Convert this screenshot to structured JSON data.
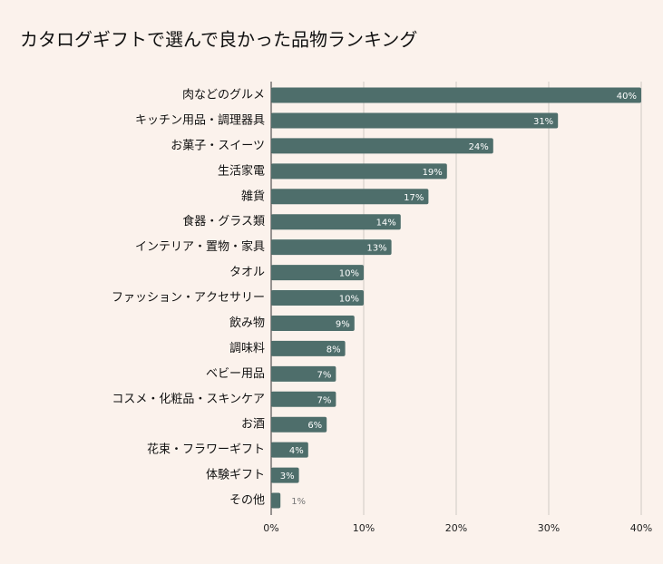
{
  "chart_data": {
    "type": "bar",
    "orientation": "horizontal",
    "title": "カタログギフトで選んで良かった品物ランキング",
    "categories": [
      "肉などのグルメ",
      "キッチン用品・調理器具",
      "お菓子・スイーツ",
      "生活家電",
      "雑貨",
      "食器・グラス類",
      "インテリア・置物・家具",
      "タオル",
      "ファッション・アクセサリー",
      "飲み物",
      "調味料",
      "ベビー用品",
      "コスメ・化粧品・スキンケア",
      "お酒",
      "花束・フラワーギフト",
      "体験ギフト",
      "その他"
    ],
    "values": [
      40,
      31,
      24,
      19,
      17,
      14,
      13,
      10,
      10,
      9,
      8,
      7,
      7,
      6,
      4,
      3,
      1
    ],
    "value_labels": [
      "40%",
      "31%",
      "24%",
      "19%",
      "17%",
      "14%",
      "13%",
      "10%",
      "10%",
      "9%",
      "8%",
      "7%",
      "7%",
      "6%",
      "4%",
      "3%",
      "1%"
    ],
    "color": "#4e6e6b",
    "xlim": [
      0,
      40
    ],
    "xticks": [
      {
        "value": 0,
        "label": "0%"
      },
      {
        "value": 10,
        "label": "10%"
      },
      {
        "value": 20,
        "label": "20%"
      },
      {
        "value": 30,
        "label": "30%"
      },
      {
        "value": 40,
        "label": "40%"
      }
    ],
    "grid": true
  }
}
